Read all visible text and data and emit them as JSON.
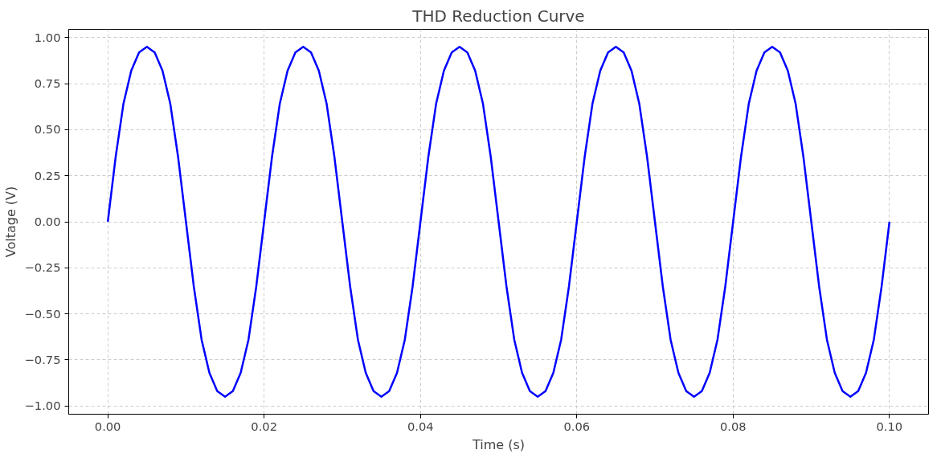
{
  "chart_data": {
    "type": "line",
    "title": "THD Reduction Curve",
    "xlabel": "Time (s)",
    "ylabel": "Voltage (V)",
    "x": [
      0,
      0.001,
      0.002,
      0.003,
      0.004,
      0.005,
      0.006,
      0.007,
      0.008,
      0.009,
      0.01,
      0.011,
      0.012,
      0.013,
      0.014,
      0.015,
      0.016,
      0.017,
      0.018,
      0.019,
      0.02,
      0.021,
      0.022,
      0.023,
      0.024,
      0.025,
      0.026,
      0.027,
      0.028,
      0.029,
      0.03,
      0.031,
      0.032,
      0.033,
      0.034,
      0.035,
      0.036,
      0.037,
      0.038,
      0.039,
      0.04,
      0.041,
      0.042,
      0.043,
      0.044,
      0.045,
      0.046,
      0.047,
      0.048,
      0.049,
      0.05,
      0.051,
      0.052,
      0.053,
      0.054,
      0.055,
      0.056,
      0.057,
      0.058,
      0.059,
      0.06,
      0.061,
      0.062,
      0.063,
      0.064,
      0.065,
      0.066,
      0.067,
      0.068,
      0.069,
      0.07,
      0.071,
      0.072,
      0.073,
      0.074,
      0.075,
      0.076,
      0.077,
      0.078,
      0.079,
      0.08,
      0.081,
      0.082,
      0.083,
      0.084,
      0.085,
      0.086,
      0.087,
      0.088,
      0.089,
      0.09,
      0.091,
      0.092,
      0.093,
      0.094,
      0.095,
      0.096,
      0.097,
      0.098,
      0.099,
      0.1
    ],
    "series": [
      {
        "color": "#0000ff",
        "values": [
          0,
          0.35,
          0.64,
          0.82,
          0.92,
          0.95,
          0.92,
          0.82,
          0.64,
          0.35,
          0,
          -0.35,
          -0.64,
          -0.82,
          -0.92,
          -0.95,
          -0.92,
          -0.82,
          -0.64,
          -0.35,
          0,
          0.35,
          0.64,
          0.82,
          0.92,
          0.95,
          0.92,
          0.82,
          0.64,
          0.35,
          0,
          -0.35,
          -0.64,
          -0.82,
          -0.92,
          -0.95,
          -0.92,
          -0.82,
          -0.64,
          -0.35,
          0,
          0.35,
          0.64,
          0.82,
          0.92,
          0.95,
          0.92,
          0.82,
          0.64,
          0.35,
          0,
          -0.35,
          -0.64,
          -0.82,
          -0.92,
          -0.95,
          -0.92,
          -0.82,
          -0.64,
          -0.35,
          0,
          0.35,
          0.64,
          0.82,
          0.92,
          0.95,
          0.92,
          0.82,
          0.64,
          0.35,
          0,
          -0.35,
          -0.64,
          -0.82,
          -0.92,
          -0.95,
          -0.92,
          -0.82,
          -0.64,
          -0.35,
          0,
          0.35,
          0.64,
          0.82,
          0.92,
          0.95,
          0.92,
          0.82,
          0.64,
          0.35,
          0,
          -0.35,
          -0.64,
          -0.82,
          -0.92,
          -0.95,
          -0.92,
          -0.82,
          -0.64,
          -0.35,
          0
        ]
      }
    ],
    "xlim": [
      -0.005,
      0.105
    ],
    "ylim": [
      -1.045,
      1.045
    ],
    "xticks": [
      {
        "value": 0,
        "label": "0.00"
      },
      {
        "value": 0.02,
        "label": "0.02"
      },
      {
        "value": 0.04,
        "label": "0.04"
      },
      {
        "value": 0.06,
        "label": "0.06"
      },
      {
        "value": 0.08,
        "label": "0.08"
      },
      {
        "value": 0.1,
        "label": "0.10"
      }
    ],
    "yticks": [
      {
        "value": -1,
        "label": "−1.00"
      },
      {
        "value": -0.75,
        "label": "−0.75"
      },
      {
        "value": -0.5,
        "label": "−0.50"
      },
      {
        "value": -0.25,
        "label": "−0.25"
      },
      {
        "value": 0,
        "label": "0.00"
      },
      {
        "value": 0.25,
        "label": "0.25"
      },
      {
        "value": 0.5,
        "label": "0.50"
      },
      {
        "value": 0.75,
        "label": "0.75"
      },
      {
        "value": 1,
        "label": "1.00"
      }
    ],
    "grid": true,
    "line_style": "solid",
    "marker": "none"
  }
}
